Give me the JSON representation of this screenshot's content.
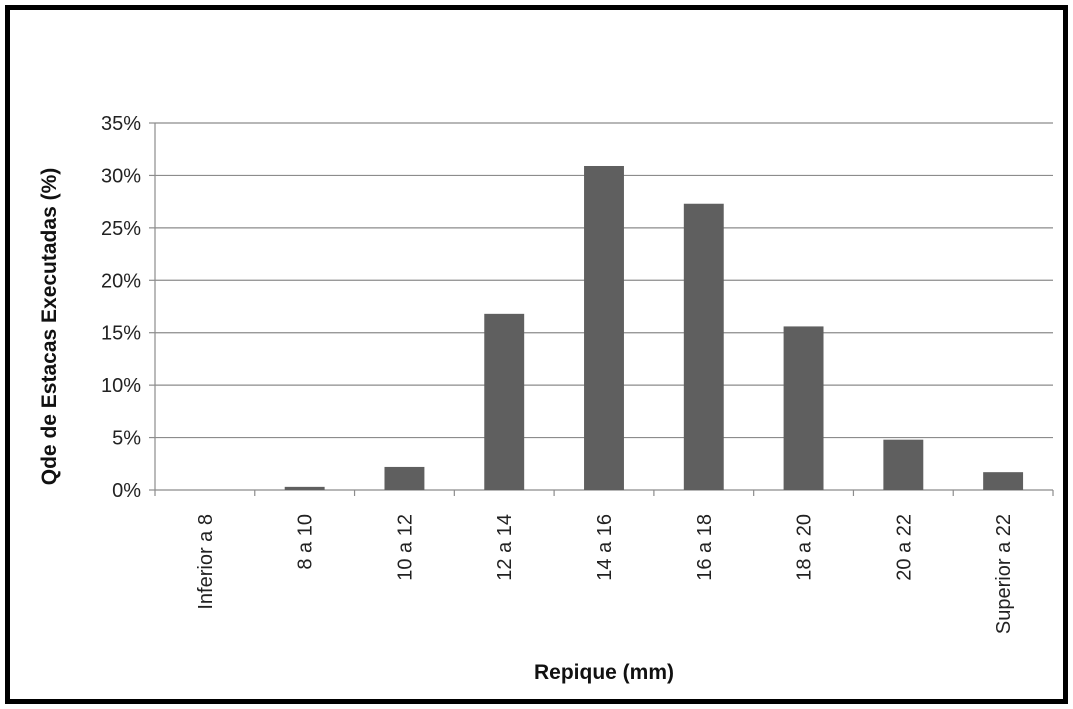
{
  "chart_data": {
    "type": "bar",
    "title": "",
    "xlabel": "Repique (mm)",
    "ylabel": "Qde de Estacas Executadas (%)",
    "categories": [
      "Inferior a 8",
      "8 a 10",
      "10 a 12",
      "12 a 14",
      "14 a 16",
      "16 a 18",
      "18 a 20",
      "20 a 22",
      "Superior a 22"
    ],
    "values": [
      0,
      0.3,
      2.2,
      16.8,
      30.9,
      27.3,
      15.6,
      4.8,
      1.7
    ],
    "ylim": [
      0,
      35
    ],
    "yticks": [
      0,
      5,
      10,
      15,
      20,
      25,
      30,
      35
    ],
    "ytick_labels": [
      "0%",
      "5%",
      "10%",
      "15%",
      "20%",
      "25%",
      "30%",
      "35%"
    ],
    "grid": true,
    "legend": "none",
    "bar_color": "#5f5f5f",
    "grid_color": "#8c8c8c"
  }
}
